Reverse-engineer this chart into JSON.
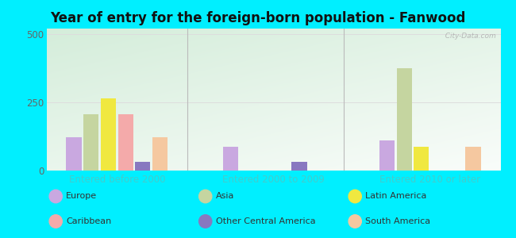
{
  "title": "Year of entry for the foreign-born population - Fanwood",
  "categories": [
    "Entered before 2000",
    "Entered 2000 to 2009",
    "Entered 2010 or later"
  ],
  "series_order": [
    "Europe",
    "Asia",
    "Latin America",
    "Caribbean",
    "Other Central America",
    "South America"
  ],
  "series": {
    "Europe": [
      120,
      85,
      110
    ],
    "Asia": [
      205,
      0,
      375
    ],
    "Latin America": [
      265,
      0,
      85
    ],
    "Caribbean": [
      205,
      0,
      0
    ],
    "Other Central America": [
      30,
      30,
      0
    ],
    "South America": [
      120,
      0,
      85
    ]
  },
  "colors": {
    "Europe": "#c9a8e0",
    "Asia": "#c5d5a0",
    "Latin America": "#f0e840",
    "Caribbean": "#f4aaaa",
    "Other Central America": "#8878c0",
    "South America": "#f5c8a0"
  },
  "ylim": [
    0,
    520
  ],
  "yticks": [
    0,
    250,
    500
  ],
  "background_outer": "#00efff",
  "grid_color": "#dddddd",
  "axis_label_color": "#44cccc",
  "title_fontsize": 12,
  "tick_fontsize": 8.5,
  "legend_fontsize": 8,
  "watermark": "  City-Data.com"
}
